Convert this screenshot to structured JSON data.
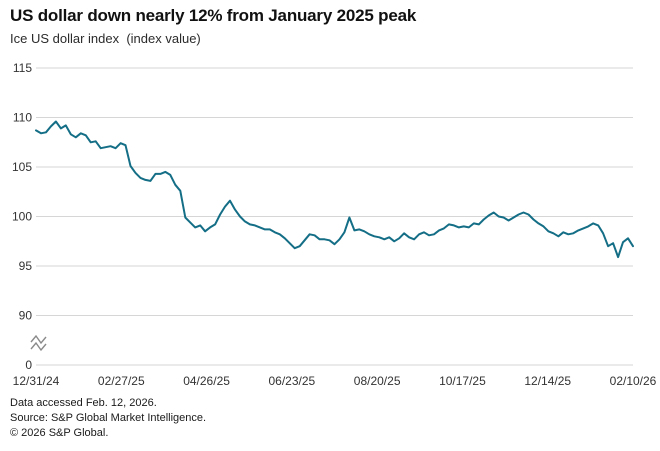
{
  "header": {
    "title": "US dollar down nearly 12% from January 2025 peak",
    "subtitle": "Ice US dollar index  (index value)"
  },
  "footer": {
    "line1": "Data accessed Feb. 12, 2026.",
    "line2": "Source: S&P Global Market Intelligence.",
    "line3": "© 2026 S&P Global."
  },
  "chart_data": {
    "type": "line",
    "title": "US dollar down nearly 12% from January 2025 peak",
    "subtitle": "Ice US dollar index (index value)",
    "series_name": "Ice US dollar index",
    "x_tick_labels": [
      "12/31/24",
      "02/27/25",
      "04/26/25",
      "06/23/25",
      "08/20/25",
      "10/17/25",
      "12/14/25",
      "02/10/26"
    ],
    "y_ticks": [
      115,
      110,
      105,
      100,
      95,
      90
    ],
    "y_zero_tick": 0,
    "y_axis_break": true,
    "ylim": [
      90,
      115
    ],
    "grid": true,
    "legend": "none",
    "line_color": "#146e86",
    "grid_color": "#d6d6d6",
    "axis_text_color": "#333333",
    "break_icon_color": "#8a8a8a",
    "values": [
      108.7,
      108.4,
      108.5,
      109.1,
      109.6,
      108.9,
      109.2,
      108.3,
      108.0,
      108.4,
      108.2,
      107.5,
      107.6,
      106.9,
      107.0,
      107.1,
      106.9,
      107.4,
      107.2,
      105.1,
      104.4,
      103.9,
      103.7,
      103.6,
      104.3,
      104.3,
      104.5,
      104.2,
      103.2,
      102.6,
      99.9,
      99.4,
      98.9,
      99.1,
      98.5,
      98.9,
      99.2,
      100.2,
      101.0,
      101.6,
      100.7,
      100.0,
      99.5,
      99.2,
      99.1,
      98.9,
      98.7,
      98.7,
      98.4,
      98.2,
      97.8,
      97.3,
      96.8,
      97.0,
      97.6,
      98.2,
      98.1,
      97.7,
      97.7,
      97.6,
      97.2,
      97.7,
      98.4,
      99.9,
      98.6,
      98.7,
      98.5,
      98.2,
      98.0,
      97.9,
      97.7,
      97.9,
      97.5,
      97.8,
      98.3,
      97.9,
      97.7,
      98.2,
      98.4,
      98.1,
      98.2,
      98.6,
      98.8,
      99.2,
      99.1,
      98.9,
      99.0,
      98.9,
      99.3,
      99.2,
      99.7,
      100.1,
      100.4,
      100.0,
      99.9,
      99.6,
      99.9,
      100.2,
      100.4,
      100.2,
      99.7,
      99.3,
      99.0,
      98.5,
      98.3,
      98.0,
      98.4,
      98.2,
      98.3,
      98.6,
      98.8,
      99.0,
      99.3,
      99.1,
      98.3,
      97.0,
      97.3,
      95.9,
      97.4,
      97.8,
      97.0
    ]
  }
}
